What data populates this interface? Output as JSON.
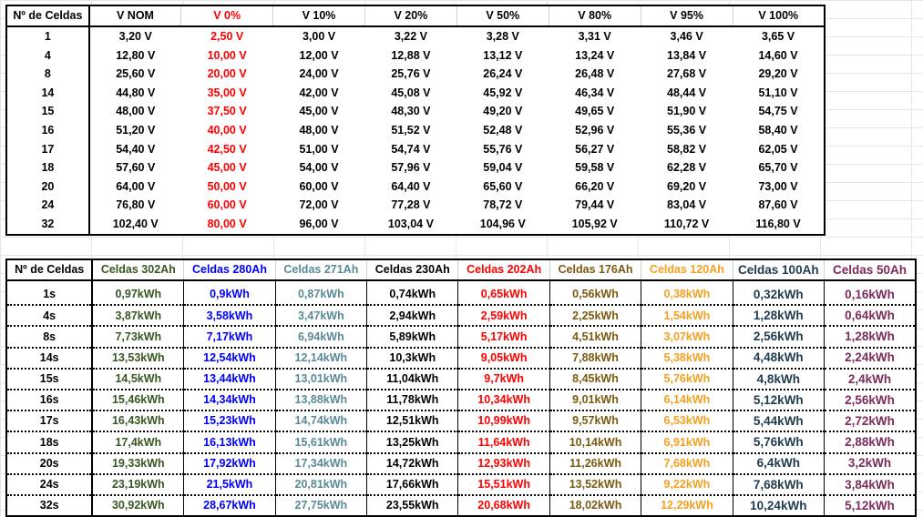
{
  "voltage_table": {
    "headers": [
      "Nº de Celdas",
      "V NOM",
      "V 0%",
      "V 10%",
      "V 20%",
      "V 50%",
      "V 80%",
      "V 95%",
      "V 100%"
    ],
    "rows": [
      [
        "1",
        "3,20 V",
        "2,50 V",
        "3,00 V",
        "3,22 V",
        "3,28 V",
        "3,31 V",
        "3,46 V",
        "3,65 V"
      ],
      [
        "4",
        "12,80 V",
        "10,00 V",
        "12,00 V",
        "12,88 V",
        "13,12 V",
        "13,24 V",
        "13,84 V",
        "14,60 V"
      ],
      [
        "8",
        "25,60 V",
        "20,00 V",
        "24,00 V",
        "25,76 V",
        "26,24 V",
        "26,48 V",
        "27,68 V",
        "29,20 V"
      ],
      [
        "14",
        "44,80 V",
        "35,00 V",
        "42,00 V",
        "45,08 V",
        "45,92 V",
        "46,34 V",
        "48,44 V",
        "51,10 V"
      ],
      [
        "15",
        "48,00 V",
        "37,50 V",
        "45,00 V",
        "48,30 V",
        "49,20 V",
        "49,65 V",
        "51,90 V",
        "54,75 V"
      ],
      [
        "16",
        "51,20 V",
        "40,00 V",
        "48,00 V",
        "51,52 V",
        "52,48 V",
        "52,96 V",
        "55,36 V",
        "58,40 V"
      ],
      [
        "17",
        "54,40 V",
        "42,50 V",
        "51,00 V",
        "54,74 V",
        "55,76 V",
        "56,27 V",
        "58,82 V",
        "62,05 V"
      ],
      [
        "18",
        "57,60 V",
        "45,00 V",
        "54,00 V",
        "57,96 V",
        "59,04 V",
        "59,58 V",
        "62,28 V",
        "65,70 V"
      ],
      [
        "20",
        "64,00 V",
        "50,00 V",
        "60,00 V",
        "64,40 V",
        "65,60 V",
        "66,20 V",
        "69,20 V",
        "73,00 V"
      ],
      [
        "24",
        "76,80 V",
        "60,00 V",
        "72,00 V",
        "77,28 V",
        "78,72 V",
        "79,44 V",
        "83,04 V",
        "87,60 V"
      ],
      [
        "32",
        "102,40 V",
        "80,00 V",
        "96,00 V",
        "103,04 V",
        "104,96 V",
        "105,92 V",
        "110,72 V",
        "116,80 V"
      ]
    ]
  },
  "energy_table": {
    "headers": [
      "Nº de Celdas",
      "Celdas 302Ah",
      "Celdas 280Ah",
      "Celdas 271Ah",
      "Celdas 230Ah",
      "Celdas 202Ah",
      "Celdas 176Ah",
      "Celdas 120Ah",
      "Celdas 100Ah",
      "Celdas 50Ah"
    ],
    "rows": [
      [
        "1s",
        "0,97kWh",
        "0,9kWh",
        "0,87kWh",
        "0,74kWh",
        "0,65kWh",
        "0,56kWh",
        "0,38kWh",
        "0,32kWh",
        "0,16kWh"
      ],
      [
        "4s",
        "3,87kWh",
        "3,58kWh",
        "3,47kWh",
        "2,94kWh",
        "2,59kWh",
        "2,25kWh",
        "1,54kWh",
        "1,28kWh",
        "0,64kWh"
      ],
      [
        "8s",
        "7,73kWh",
        "7,17kWh",
        "6,94kWh",
        "5,89kWh",
        "5,17kWh",
        "4,51kWh",
        "3,07kWh",
        "2,56kWh",
        "1,28kWh"
      ],
      [
        "14s",
        "13,53kWh",
        "12,54kWh",
        "12,14kWh",
        "10,3kWh",
        "9,05kWh",
        "7,88kWh",
        "5,38kWh",
        "4,48kWh",
        "2,24kWh"
      ],
      [
        "15s",
        "14,5kWh",
        "13,44kWh",
        "13,01kWh",
        "11,04kWh",
        "9,7kWh",
        "8,45kWh",
        "5,76kWh",
        "4,8kWh",
        "2,4kWh"
      ],
      [
        "16s",
        "15,46kWh",
        "14,34kWh",
        "13,88kWh",
        "11,78kWh",
        "10,34kWh",
        "9,01kWh",
        "6,14kWh",
        "5,12kWh",
        "2,56kWh"
      ],
      [
        "17s",
        "16,43kWh",
        "15,23kWh",
        "14,74kWh",
        "12,51kWh",
        "10,99kWh",
        "9,57kWh",
        "6,53kWh",
        "5,44kWh",
        "2,72kWh"
      ],
      [
        "18s",
        "17,4kWh",
        "16,13kWh",
        "15,61kWh",
        "13,25kWh",
        "11,64kWh",
        "10,14kWh",
        "6,91kWh",
        "5,76kWh",
        "2,88kWh"
      ],
      [
        "20s",
        "19,33kWh",
        "17,92kWh",
        "17,34kWh",
        "14,72kWh",
        "12,93kWh",
        "11,26kWh",
        "7,68kWh",
        "6,4kWh",
        "3,2kWh"
      ],
      [
        "24s",
        "23,19kWh",
        "21,5kWh",
        "20,81kWh",
        "17,66kWh",
        "15,51kWh",
        "13,52kWh",
        "9,22kWh",
        "7,68kWh",
        "3,84kWh"
      ],
      [
        "32s",
        "30,92kWh",
        "28,67kWh",
        "27,75kWh",
        "23,55kWh",
        "20,68kWh",
        "18,02kWh",
        "12,29kWh",
        "10,24kWh",
        "5,12kWh"
      ]
    ]
  },
  "colors": {
    "v0_red": "#ff0000",
    "celdas_302": "#375623",
    "celdas_280": "#0000ff",
    "celdas_271": "#5a8a96",
    "celdas_230": "#000000",
    "celdas_202": "#ff0000",
    "celdas_176": "#7a5a10",
    "celdas_120": "#f4a020",
    "celdas_100": "#1f3b4d",
    "celdas_50": "#7b2c5a"
  }
}
